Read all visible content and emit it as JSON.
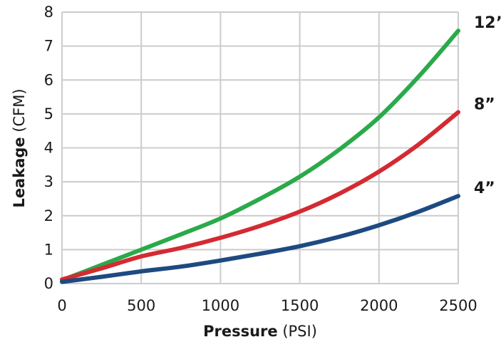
{
  "chart_data": {
    "type": "line",
    "xlabel": {
      "bold": "Pressure",
      "unit": " (PSI)"
    },
    "ylabel": {
      "bold": "Leakage",
      "unit": " (CFM)"
    },
    "xlim": [
      0,
      2500
    ],
    "ylim": [
      0,
      8
    ],
    "xticks": [
      0,
      500,
      1000,
      1500,
      2000,
      2500
    ],
    "yticks": [
      0,
      1,
      2,
      3,
      4,
      5,
      6,
      7,
      8
    ],
    "grid": true,
    "legend": "none",
    "x": [
      0,
      250,
      500,
      750,
      1000,
      1250,
      1500,
      1750,
      2000,
      2250,
      2500
    ],
    "series": [
      {
        "label": "12”",
        "color": "#2aaa4a",
        "values": [
          0.1,
          0.55,
          1.0,
          1.45,
          1.92,
          2.5,
          3.15,
          3.95,
          4.9,
          6.1,
          7.45
        ]
      },
      {
        "label": "8”",
        "color": "#d42a32",
        "values": [
          0.12,
          0.45,
          0.8,
          1.05,
          1.35,
          1.7,
          2.12,
          2.65,
          3.3,
          4.1,
          5.05
        ]
      },
      {
        "label": "4”",
        "color": "#1d4a80",
        "values": [
          0.05,
          0.2,
          0.36,
          0.5,
          0.68,
          0.88,
          1.1,
          1.38,
          1.72,
          2.12,
          2.58
        ]
      }
    ]
  }
}
